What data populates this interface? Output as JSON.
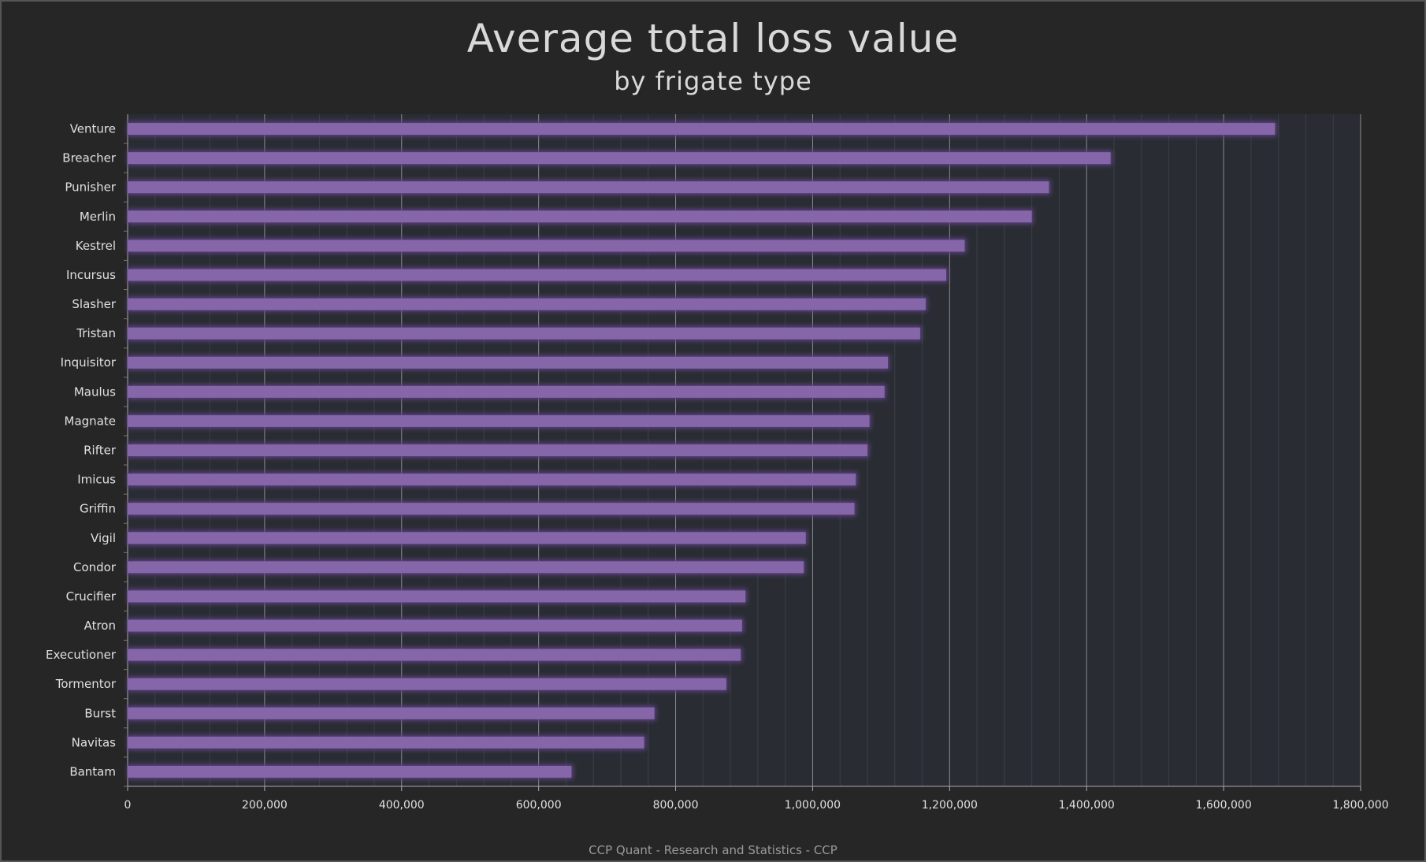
{
  "chart_data": {
    "type": "bar",
    "orientation": "horizontal",
    "title": "Average total loss value",
    "subtitle": "by frigate type",
    "source": "CCP Quant - Research and Statistics - CCP",
    "categories": [
      "Venture",
      "Breacher",
      "Punisher",
      "Merlin",
      "Kestrel",
      "Incursus",
      "Slasher",
      "Tristan",
      "Inquisitor",
      "Maulus",
      "Magnate",
      "Rifter",
      "Imicus",
      "Griffin",
      "Vigil",
      "Condor",
      "Crucifier",
      "Atron",
      "Executioner",
      "Tormentor",
      "Burst",
      "Navitas",
      "Bantam"
    ],
    "values": [
      1675000,
      1435000,
      1345000,
      1320000,
      1222000,
      1195000,
      1165000,
      1157000,
      1110000,
      1105000,
      1083000,
      1080000,
      1063000,
      1061000,
      990000,
      987000,
      902000,
      897000,
      895000,
      874000,
      769000,
      754000,
      648000
    ],
    "xlim": [
      0,
      1800000
    ],
    "xticks": [
      0,
      200000,
      400000,
      600000,
      800000,
      1000000,
      1200000,
      1400000,
      1600000,
      1800000
    ],
    "xtick_labels": [
      "0",
      "200,000",
      "400,000",
      "600,000",
      "800,000",
      "1,000,000",
      "1,200,000",
      "1,400,000",
      "1,600,000",
      "1,800,000"
    ],
    "grid": true,
    "legend": "none",
    "colors": {
      "bar": "#8566a8",
      "bar_glow": "#5e3f84",
      "plot_bg": "#292d33",
      "page_bg": "#262626",
      "major_grid": "#8a8a8a",
      "minor_grid": "#3a3f47",
      "text": "#e0e0e0"
    }
  }
}
